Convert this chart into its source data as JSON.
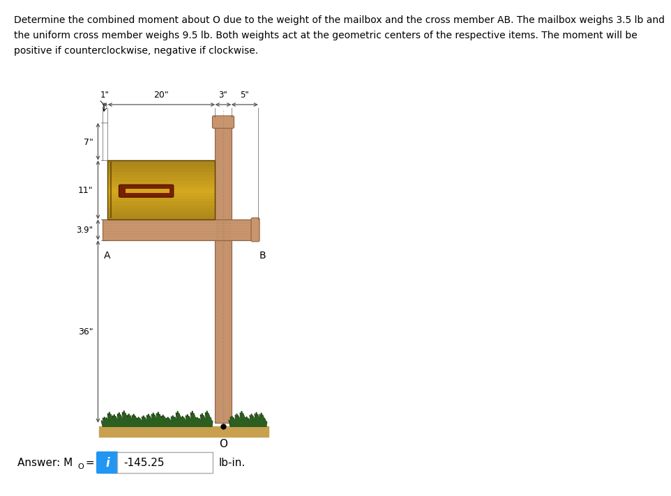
{
  "problem_text": "Determine the combined moment about O due to the weight of the mailbox and the cross member AB. The mailbox weighs 3.5 lb and\nthe uniform cross member weighs 9.5 lb. Both weights act at the geometric centers of the respective items. The moment will be\npositive if counterclockwise, negative if clockwise.",
  "answer_value": "-145.25",
  "answer_unit": "lb-in.",
  "dim_1_label": "1\"",
  "dim_20_label": "20\"",
  "dim_3_label": "3\"",
  "dim_5_label": "5\"",
  "dim_7_label": "7\"",
  "dim_11_label": "11\"",
  "dim_39_label": "3.9\"",
  "dim_36_label": "36\"",
  "label_A": "A",
  "label_B": "B",
  "label_O": "O",
  "post_color": "#c8956e",
  "post_dark": "#8b6040",
  "post_mid": "#b07848",
  "mailbox_top_color": "#d4a820",
  "mailbox_bot_color": "#8b6914",
  "handle_color": "#7a2000",
  "grass_dark": "#1a4010",
  "grass_mid": "#2d6020",
  "grass_light": "#4a8a30",
  "ground_color": "#c8a050",
  "bg_color": "#ffffff",
  "dim_line_color": "#555555"
}
